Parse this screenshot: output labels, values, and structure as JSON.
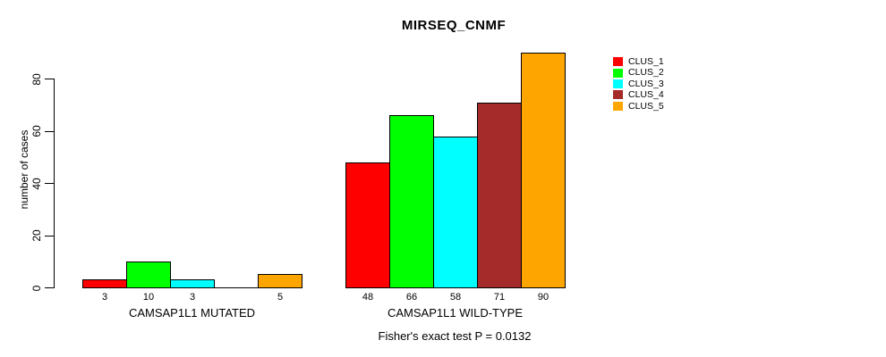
{
  "chart_data": {
    "type": "bar",
    "title": "MIRSEQ_CNMF",
    "ylabel": "number of cases",
    "xlabel": "",
    "ylim": [
      0,
      92
    ],
    "yticks": [
      0,
      20,
      40,
      60,
      80
    ],
    "grid": false,
    "legend_position": "top-right",
    "legend": [
      "CLUS_1",
      "CLUS_2",
      "CLUS_3",
      "CLUS_4",
      "CLUS_5"
    ],
    "colors": [
      "#ff0000",
      "#00ff00",
      "#00ffff",
      "#a52a2a",
      "#ffa500"
    ],
    "groups": [
      {
        "label": "CAMSAP1L1 MUTATED",
        "values": [
          3,
          10,
          3,
          0,
          5
        ],
        "bar_labels": [
          "3",
          "10",
          "3",
          "",
          "5"
        ]
      },
      {
        "label": "CAMSAP1L1 WILD-TYPE",
        "values": [
          48,
          66,
          58,
          71,
          90
        ],
        "bar_labels": [
          "48",
          "66",
          "58",
          "71",
          "90"
        ]
      }
    ],
    "footnote": "Fisher's exact test P = 0.0132"
  }
}
